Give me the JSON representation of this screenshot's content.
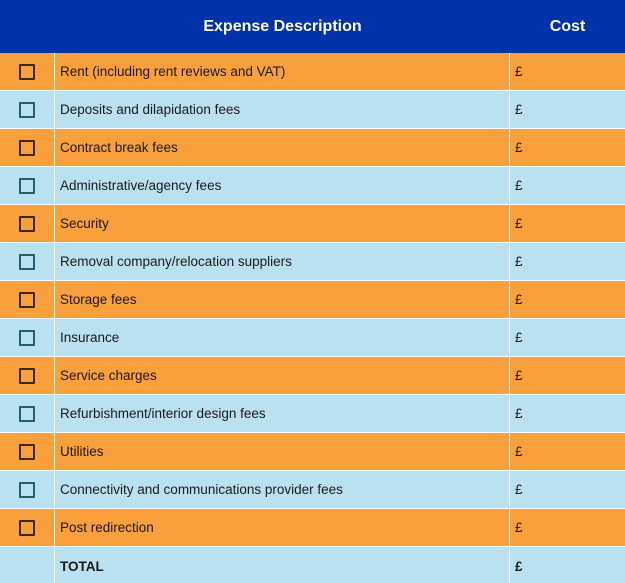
{
  "header": {
    "description_label": "Expense Description",
    "cost_label": "Cost"
  },
  "rows": [
    {
      "description": "Rent (including rent reviews and VAT)",
      "cost": "£"
    },
    {
      "description": "Deposits and dilapidation fees",
      "cost": "£"
    },
    {
      "description": "Contract break fees",
      "cost": "£"
    },
    {
      "description": "Administrative/agency fees",
      "cost": "£"
    },
    {
      "description": "Security",
      "cost": "£"
    },
    {
      "description": "Removal company/relocation suppliers",
      "cost": "£"
    },
    {
      "description": "Storage fees",
      "cost": "£"
    },
    {
      "description": "Insurance",
      "cost": "£"
    },
    {
      "description": "Service charges",
      "cost": "£"
    },
    {
      "description": "Refurbishment/interior design fees",
      "cost": "£"
    },
    {
      "description": "Utilities",
      "cost": "£"
    },
    {
      "description": "Connectivity and communications provider fees",
      "cost": "£"
    },
    {
      "description": "Post redirection",
      "cost": "£"
    }
  ],
  "total": {
    "label": "TOTAL",
    "cost": "£"
  },
  "colors": {
    "header_bg": "#0033aa",
    "row_orange": "#f9a03c",
    "row_blue": "#b9e1ef"
  }
}
